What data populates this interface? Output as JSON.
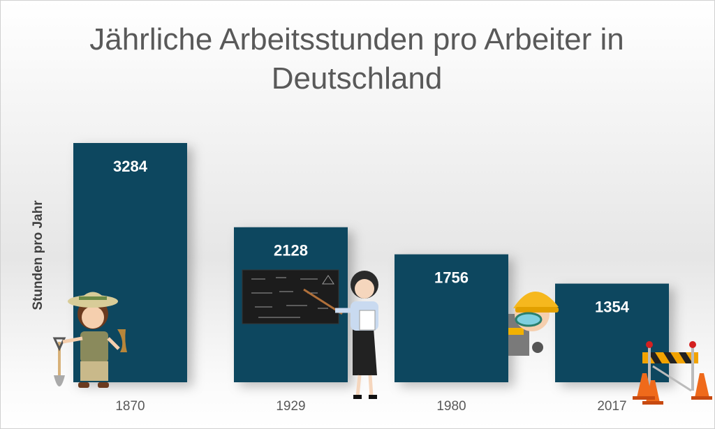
{
  "chart_data": {
    "type": "bar",
    "title": "Jährliche Arbeitsstunden pro Arbeiter in Deutschland",
    "xlabel": "",
    "ylabel": "Stunden pro Jahr",
    "categories": [
      "1870",
      "1929",
      "1980",
      "2017"
    ],
    "values": [
      3284,
      2128,
      1756,
      1354
    ],
    "ylim": [
      0,
      3284
    ],
    "grid": false,
    "legend": "none",
    "data_labels": true,
    "bar_color": "#11475f",
    "label_color": "#ffffff"
  },
  "decorations": [
    "archaeologist-girl-icon",
    "teacher-with-chalkboard-icon",
    "construction-worker-icon",
    "road-barrier-with-cones-icon"
  ]
}
